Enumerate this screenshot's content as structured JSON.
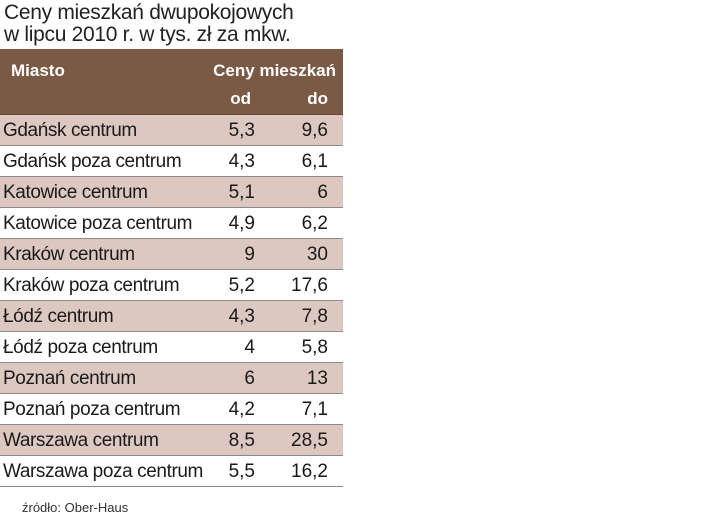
{
  "chart_data": {
    "type": "table",
    "title_lines": [
      "Ceny mieszkań dwupokojowych",
      "w lipcu 2010 r. w tys. zł za mkw."
    ],
    "columns": {
      "city": "Miasto",
      "prices": "Ceny mieszkań",
      "from": "od",
      "to": "do"
    },
    "rows": [
      {
        "city": "Gdańsk  centrum",
        "from": "5,3",
        "to": "9,6"
      },
      {
        "city": "Gdańsk poza centrum",
        "from": "4,3",
        "to": "6,1"
      },
      {
        "city": "Katowice centrum",
        "from": "5,1",
        "to": "6"
      },
      {
        "city": "Katowice poza centrum",
        "from": "4,9",
        "to": "6,2"
      },
      {
        "city": "Kraków centrum",
        "from": "9",
        "to": "30"
      },
      {
        "city": "Kraków poza centrum",
        "from": "5,2",
        "to": "17,6"
      },
      {
        "city": "Łódź centrum",
        "from": "4,3",
        "to": "7,8"
      },
      {
        "city": "Łódź poza centrum",
        "from": "4",
        "to": "5,8"
      },
      {
        "city": "Poznań centrum",
        "from": "6",
        "to": "13"
      },
      {
        "city": "Poznań poza centrum",
        "from": "4,2",
        "to": "7,1"
      },
      {
        "city": "Warszawa centrum",
        "from": "8,5",
        "to": "28,5"
      },
      {
        "city": "Warszawa poza centrum",
        "from": "5,5",
        "to": "16,2"
      }
    ],
    "source": "źródło: Ober-Haus"
  },
  "colors": {
    "header": "#7b5a45",
    "stripe": "#dcc8c0",
    "background": "#ffffff"
  }
}
